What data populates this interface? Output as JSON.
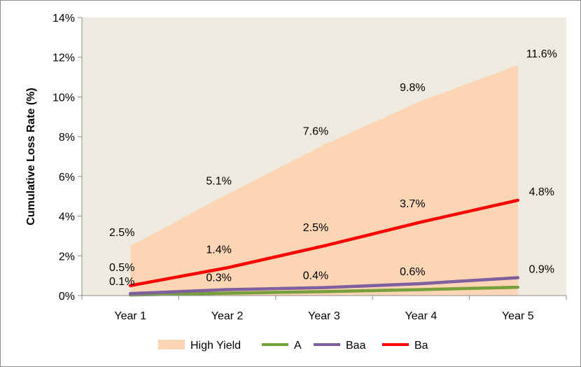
{
  "chart_data": {
    "type": "area",
    "title": "",
    "xlabel": "",
    "ylabel": "Cumulative Loss Rate (%)",
    "categories": [
      "Year 1",
      "Year 2",
      "Year 3",
      "Year 4",
      "Year 5"
    ],
    "ylim": [
      0,
      14
    ],
    "y_tick_labels": [
      "0%",
      "2%",
      "4%",
      "6%",
      "8%",
      "10%",
      "12%",
      "14%"
    ],
    "grid": false,
    "legend_position": "bottom",
    "plot_background": "#eeeae0",
    "series": [
      {
        "name": "High Yield",
        "kind": "area",
        "color": "#fcd5b5",
        "values": [
          2.5,
          5.1,
          7.6,
          9.8,
          11.6
        ],
        "labels": [
          "2.5%",
          "5.1%",
          "7.6%",
          "9.8%",
          "11.6%"
        ]
      },
      {
        "name": "A",
        "kind": "line",
        "color": "#77a03c",
        "values": [
          0.03,
          0.12,
          0.2,
          0.3,
          0.42
        ],
        "labels": []
      },
      {
        "name": "Baa",
        "kind": "line",
        "color": "#7f5f9e",
        "values": [
          0.1,
          0.3,
          0.4,
          0.6,
          0.9
        ],
        "labels": [
          "0.1%",
          "0.3%",
          "0.4%",
          "0.6%",
          "0.9%"
        ]
      },
      {
        "name": "Ba",
        "kind": "line",
        "color": "#ff0000",
        "values": [
          0.5,
          1.4,
          2.5,
          3.7,
          4.8
        ],
        "labels": [
          "0.5%",
          "1.4%",
          "2.5%",
          "3.7%",
          "4.8%"
        ]
      }
    ]
  }
}
